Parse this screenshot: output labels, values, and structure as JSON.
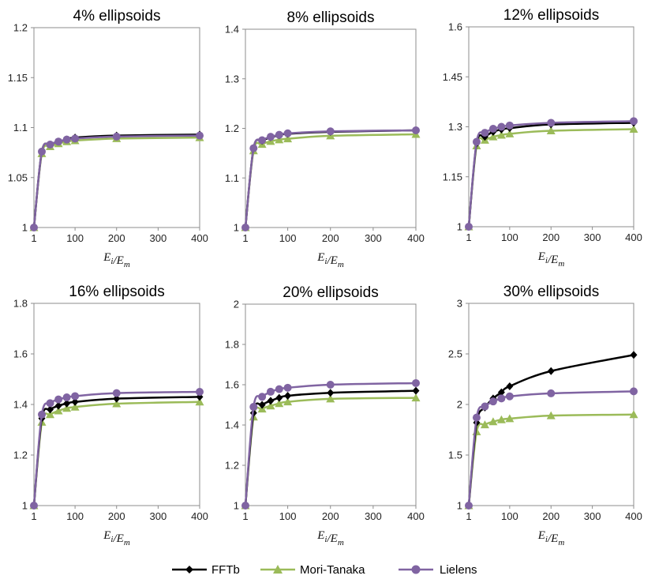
{
  "legend": [
    {
      "name": "FFTb",
      "color": "#000000",
      "marker": "diamond"
    },
    {
      "name": "Mori-Tanaka",
      "color": "#9bbb59",
      "marker": "triangle"
    },
    {
      "name": "Lielens",
      "color": "#8064a2",
      "marker": "circle"
    }
  ],
  "x_label_parts": {
    "e_i": "E",
    "sub_i": "i",
    "slash": "/",
    "e_m": "E",
    "sub_m": "m"
  },
  "chart_data": [
    {
      "type": "line",
      "title": "4% ellipsoids",
      "xlabel": "Ei/Em",
      "x": [
        1,
        20,
        40,
        60,
        80,
        100,
        200,
        400
      ],
      "xticks": [
        1,
        100,
        200,
        300,
        400
      ],
      "ylim": [
        1,
        1.2
      ],
      "yticks": [
        "1",
        "1.05",
        "1.1",
        "1.15",
        "1.2"
      ],
      "series": [
        {
          "name": "FFTb",
          "values": [
            1,
            1.076,
            1.083,
            1.086,
            1.088,
            1.09,
            1.092,
            1.093
          ]
        },
        {
          "name": "Mori-Tanaka",
          "values": [
            1,
            1.074,
            1.081,
            1.084,
            1.086,
            1.087,
            1.089,
            1.09
          ]
        },
        {
          "name": "Lielens",
          "values": [
            1,
            1.076,
            1.083,
            1.086,
            1.088,
            1.089,
            1.091,
            1.092
          ]
        }
      ]
    },
    {
      "type": "line",
      "title": "8% ellipsoids",
      "xlabel": "Ei/Em",
      "x": [
        1,
        20,
        40,
        60,
        80,
        100,
        200,
        400
      ],
      "xticks": [
        1,
        100,
        200,
        300,
        400
      ],
      "ylim": [
        1,
        1.4
      ],
      "yticks": [
        "1",
        "1.1",
        "1.2",
        "1.3",
        "1.4"
      ],
      "series": [
        {
          "name": "FFTb",
          "values": [
            1,
            1.16,
            1.175,
            1.182,
            1.186,
            1.189,
            1.193,
            1.196
          ]
        },
        {
          "name": "Mori-Tanaka",
          "values": [
            1,
            1.155,
            1.168,
            1.174,
            1.177,
            1.179,
            1.185,
            1.188
          ]
        },
        {
          "name": "Lielens",
          "values": [
            1,
            1.16,
            1.176,
            1.183,
            1.187,
            1.19,
            1.194,
            1.196
          ]
        }
      ]
    },
    {
      "type": "line",
      "title": "12% ellipsoids",
      "xlabel": "Ei/Em",
      "x": [
        1,
        20,
        40,
        60,
        80,
        100,
        200,
        400
      ],
      "xticks": [
        1,
        100,
        200,
        300,
        400
      ],
      "ylim": [
        1,
        1.6
      ],
      "yticks": [
        "1",
        "1.15",
        "1.3",
        "1.45",
        "1.6"
      ],
      "series": [
        {
          "name": "FFTb",
          "values": [
            1,
            1.25,
            1.27,
            1.285,
            1.292,
            1.296,
            1.307,
            1.312
          ]
        },
        {
          "name": "Mori-Tanaka",
          "values": [
            1,
            1.243,
            1.26,
            1.27,
            1.275,
            1.279,
            1.288,
            1.293
          ]
        },
        {
          "name": "Lielens",
          "values": [
            1,
            1.255,
            1.282,
            1.294,
            1.3,
            1.304,
            1.312,
            1.317
          ]
        }
      ]
    },
    {
      "type": "line",
      "title": "16% ellipsoids",
      "xlabel": "Ei/Em",
      "x": [
        1,
        20,
        40,
        60,
        80,
        100,
        200,
        400
      ],
      "xticks": [
        1,
        100,
        200,
        300,
        400
      ],
      "ylim": [
        1,
        1.8
      ],
      "yticks": [
        "1",
        "1.2",
        "1.4",
        "1.6",
        "1.8"
      ],
      "series": [
        {
          "name": "FFTb",
          "values": [
            1,
            1.345,
            1.38,
            1.395,
            1.404,
            1.41,
            1.423,
            1.43
          ]
        },
        {
          "name": "Mori-Tanaka",
          "values": [
            1,
            1.33,
            1.36,
            1.375,
            1.385,
            1.39,
            1.403,
            1.41
          ]
        },
        {
          "name": "Lielens",
          "values": [
            1,
            1.36,
            1.405,
            1.42,
            1.428,
            1.433,
            1.445,
            1.45
          ]
        }
      ]
    },
    {
      "type": "line",
      "title": "20% ellipsoids",
      "xlabel": "Ei/Em",
      "x": [
        1,
        20,
        40,
        60,
        80,
        100,
        200,
        400
      ],
      "xticks": [
        1,
        100,
        200,
        300,
        400
      ],
      "ylim": [
        1,
        2
      ],
      "yticks": [
        "1",
        "1.2",
        "1.4",
        "1.6",
        "1.8",
        "2"
      ],
      "series": [
        {
          "name": "FFTb",
          "values": [
            1,
            1.46,
            1.5,
            1.52,
            1.535,
            1.545,
            1.56,
            1.57
          ]
        },
        {
          "name": "Mori-Tanaka",
          "values": [
            1,
            1.44,
            1.48,
            1.495,
            1.507,
            1.515,
            1.53,
            1.535
          ]
        },
        {
          "name": "Lielens",
          "values": [
            1,
            1.49,
            1.54,
            1.565,
            1.578,
            1.585,
            1.6,
            1.608
          ]
        }
      ]
    },
    {
      "type": "line",
      "title": "30% ellipsoids",
      "xlabel": "Ei/Em",
      "x": [
        1,
        20,
        40,
        60,
        80,
        100,
        200,
        400
      ],
      "xticks": [
        1,
        100,
        200,
        300,
        400
      ],
      "ylim": [
        1,
        3
      ],
      "yticks": [
        "1",
        "1.5",
        "2",
        "2.5",
        "3"
      ],
      "series": [
        {
          "name": "FFTb",
          "values": [
            1,
            1.82,
            1.97,
            2.06,
            2.12,
            2.18,
            2.33,
            2.49
          ]
        },
        {
          "name": "Mori-Tanaka",
          "values": [
            1,
            1.73,
            1.8,
            1.83,
            1.85,
            1.86,
            1.89,
            1.9
          ]
        },
        {
          "name": "Lielens",
          "values": [
            1,
            1.87,
            1.98,
            2.03,
            2.06,
            2.08,
            2.11,
            2.13
          ]
        }
      ]
    }
  ]
}
